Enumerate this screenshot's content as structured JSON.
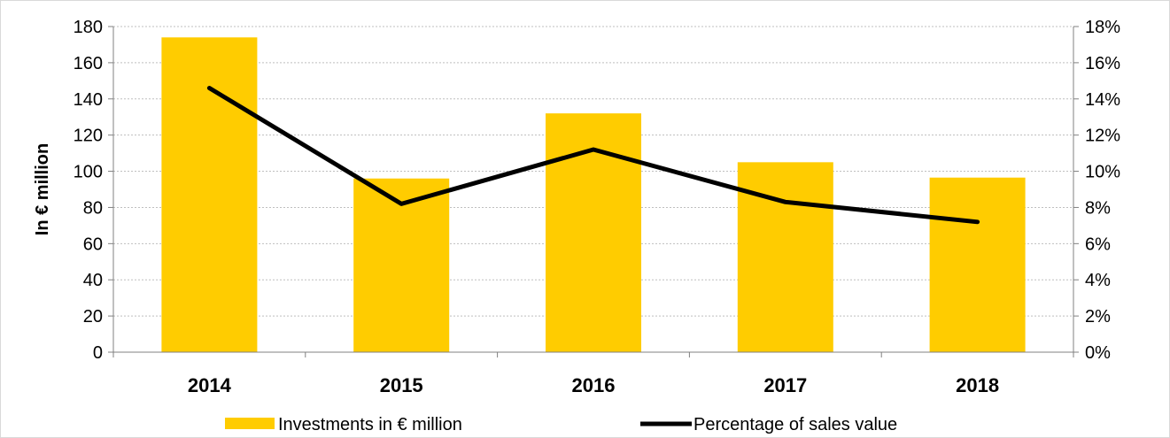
{
  "chart_data": {
    "type": "bar",
    "categories": [
      "2014",
      "2015",
      "2016",
      "2017",
      "2018"
    ],
    "series": [
      {
        "name": "Investments in € million",
        "type": "bar",
        "axis": "left",
        "color": "#FFCC00",
        "values": [
          174,
          96,
          132,
          105,
          96.5
        ]
      },
      {
        "name": "Percentage of sales value",
        "type": "line",
        "axis": "right",
        "color": "#000000",
        "values": [
          14.6,
          8.2,
          11.2,
          8.3,
          7.2
        ]
      }
    ],
    "ylabel": "In € million",
    "ylim": [
      0,
      180
    ],
    "yticks": [
      "0",
      "20",
      "40",
      "60",
      "80",
      "100",
      "120",
      "140",
      "160",
      "180"
    ],
    "y2lim": [
      0,
      18
    ],
    "y2ticks": [
      "0%",
      "2%",
      "4%",
      "6%",
      "8%",
      "10%",
      "12%",
      "14%",
      "16%",
      "18%"
    ],
    "grid": true,
    "legend": "bottom"
  }
}
